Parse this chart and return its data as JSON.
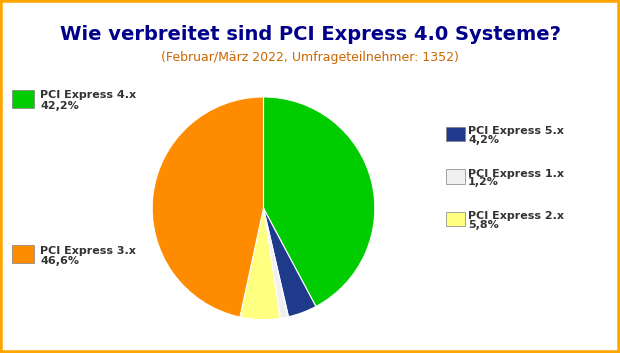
{
  "title": "Wie verbreitet sind PCI Express 4.0 Systeme?",
  "subtitle": "(Februar/März 2022, Umfrageteilnehmer: 1352)",
  "title_color": "#00008B",
  "subtitle_color": "#CC6600",
  "background_color": "#FFFFFF",
  "border_color": "#FFA500",
  "labels": [
    "PCI Express 4.x",
    "PCI Express 5.x",
    "PCI Express 1.x",
    "PCI Express 2.x",
    "PCI Express 3.x"
  ],
  "values": [
    42.2,
    4.2,
    1.2,
    5.8,
    46.6
  ],
  "colors": [
    "#00CC00",
    "#1F3A8A",
    "#F0F0F0",
    "#FFFF80",
    "#FF8C00"
  ],
  "label_colors": [
    "#00CC00",
    "#1F3A8A",
    "#808080",
    "#CCCC00",
    "#FF8C00"
  ],
  "percentages": [
    "42,2%",
    "4,2%",
    "1,2%",
    "5,8%",
    "46,6%"
  ],
  "startangle": 90
}
